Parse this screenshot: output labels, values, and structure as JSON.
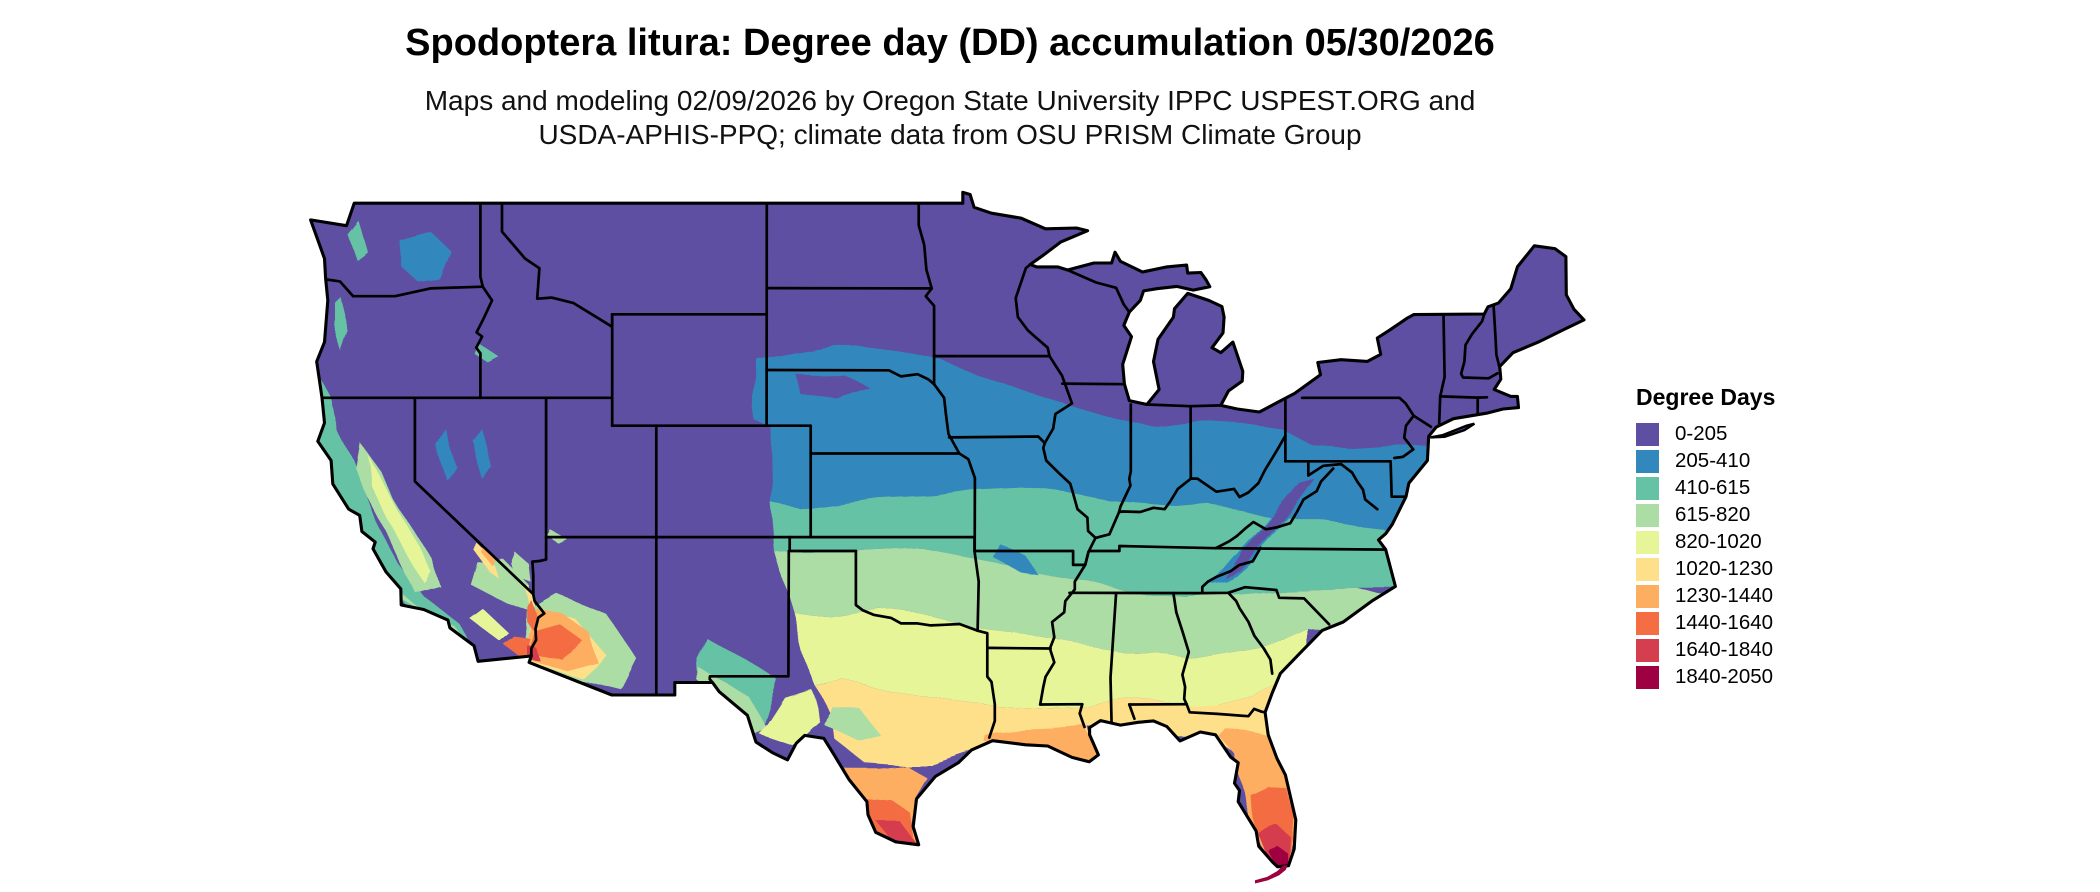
{
  "title": "Spodoptera litura: Degree day (DD) accumulation 05/30/2026",
  "subtitle_line1": "Maps and modeling 02/09/2026 by Oregon State University IPPC USPEST.ORG and",
  "subtitle_line2": "USDA-APHIS-PPQ; climate data from OSU PRISM Climate Group",
  "legend": {
    "title": "Degree Days",
    "items": [
      {
        "label": "0-205",
        "color": "#5e4fa2"
      },
      {
        "label": "205-410",
        "color": "#3288bd"
      },
      {
        "label": "410-615",
        "color": "#66c2a5"
      },
      {
        "label": "615-820",
        "color": "#abdda4"
      },
      {
        "label": "820-1020",
        "color": "#e6f598"
      },
      {
        "label": "1020-1230",
        "color": "#fee08b"
      },
      {
        "label": "1230-1440",
        "color": "#fdae61"
      },
      {
        "label": "1440-1640",
        "color": "#f46d43"
      },
      {
        "label": "1640-1840",
        "color": "#d53e4f"
      },
      {
        "label": "1840-2050",
        "color": "#9e0142"
      }
    ]
  }
}
